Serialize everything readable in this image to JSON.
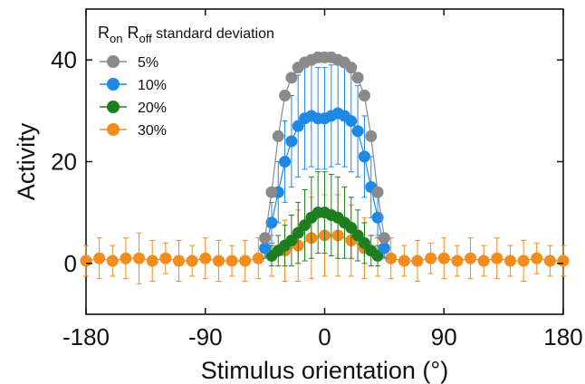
{
  "chart_data": {
    "type": "scatter",
    "xlabel": "Stimulus orientation (°)",
    "ylabel": "Activity",
    "xlim": [
      -180,
      180
    ],
    "ylim": [
      -10,
      50
    ],
    "xticks": [
      -180,
      -90,
      0,
      90,
      180
    ],
    "yticks": [
      0,
      20,
      40
    ],
    "xtick_labels": [
      "-180",
      "-90",
      "0",
      "90",
      "180"
    ],
    "ytick_labels": [
      "0",
      "20",
      "40"
    ],
    "legend": {
      "title_parts": [
        "R",
        "on",
        " R",
        "off",
        " standard deviation"
      ],
      "placement": "top-left"
    },
    "grid": false,
    "series": [
      {
        "name": "5%",
        "color": "#8a8a8a",
        "x": [
          -45,
          -40,
          -35,
          -30,
          -25,
          -20,
          -15,
          -10,
          -5,
          0,
          5,
          10,
          15,
          20,
          25,
          30,
          35,
          40,
          45
        ],
        "y": [
          5,
          14,
          25,
          33,
          36.5,
          38.5,
          39.5,
          40,
          40.5,
          40.5,
          40.5,
          40,
          39.5,
          38.5,
          36.5,
          33,
          25,
          14,
          5
        ],
        "err": [
          0.5,
          0.8,
          1,
          1,
          1,
          1,
          1,
          1,
          1,
          1,
          1,
          1,
          1,
          1,
          1,
          1,
          1,
          0.8,
          0.5
        ]
      },
      {
        "name": "10%",
        "color": "#1e88e5",
        "x": [
          -45,
          -40,
          -35,
          -30,
          -25,
          -20,
          -15,
          -10,
          -5,
          0,
          5,
          10,
          15,
          20,
          25,
          30,
          35,
          40,
          45
        ],
        "y": [
          3,
          8,
          14,
          20,
          24,
          27,
          28.5,
          29,
          28.5,
          28.5,
          29,
          29.5,
          29,
          28,
          26,
          21,
          15,
          9,
          3
        ],
        "err": [
          2,
          4,
          6,
          8,
          9,
          10,
          10,
          10,
          10,
          10,
          10,
          10,
          10,
          10,
          9,
          8,
          6,
          4,
          2
        ]
      },
      {
        "name": "20%",
        "color": "#1e7d1e",
        "x": [
          -40,
          -35,
          -30,
          -25,
          -20,
          -15,
          -10,
          -5,
          0,
          5,
          10,
          15,
          20,
          25,
          30,
          35,
          40
        ],
        "y": [
          1.5,
          2.5,
          3.5,
          4.5,
          6,
          7.5,
          9,
          10,
          10,
          9.5,
          9,
          8,
          7,
          5.5,
          4,
          2.5,
          1.5
        ],
        "err": [
          2,
          3,
          4,
          5,
          6,
          7,
          8,
          8,
          8,
          8,
          8,
          7,
          6,
          5,
          4,
          3,
          2
        ]
      },
      {
        "name": "30%",
        "color": "#f28c1c",
        "x": [
          -180,
          -170,
          -160,
          -150,
          -140,
          -130,
          -120,
          -110,
          -100,
          -90,
          -80,
          -70,
          -60,
          -50,
          -40,
          -30,
          -20,
          -10,
          0,
          10,
          20,
          30,
          40,
          50,
          60,
          70,
          80,
          90,
          100,
          110,
          120,
          130,
          140,
          150,
          160,
          170,
          180
        ],
        "y": [
          0.5,
          1,
          0.5,
          1,
          1,
          0.5,
          1,
          0.5,
          0.5,
          1,
          0.5,
          0.5,
          0.5,
          1,
          1.5,
          2.5,
          3.5,
          5,
          5.5,
          5.5,
          4.5,
          3,
          1.5,
          1,
          0.5,
          0.5,
          1,
          1,
          0.5,
          1,
          0.5,
          1,
          0.5,
          0.5,
          1,
          0.5,
          0.5
        ],
        "err": [
          3,
          4,
          3,
          4,
          5,
          4,
          3,
          4,
          3,
          4,
          4,
          3,
          4,
          4,
          4,
          6,
          7,
          8,
          8,
          8,
          7,
          6,
          4,
          4,
          3,
          4,
          3,
          4,
          3,
          4,
          3,
          4,
          3,
          4,
          3,
          3,
          3
        ]
      }
    ]
  }
}
